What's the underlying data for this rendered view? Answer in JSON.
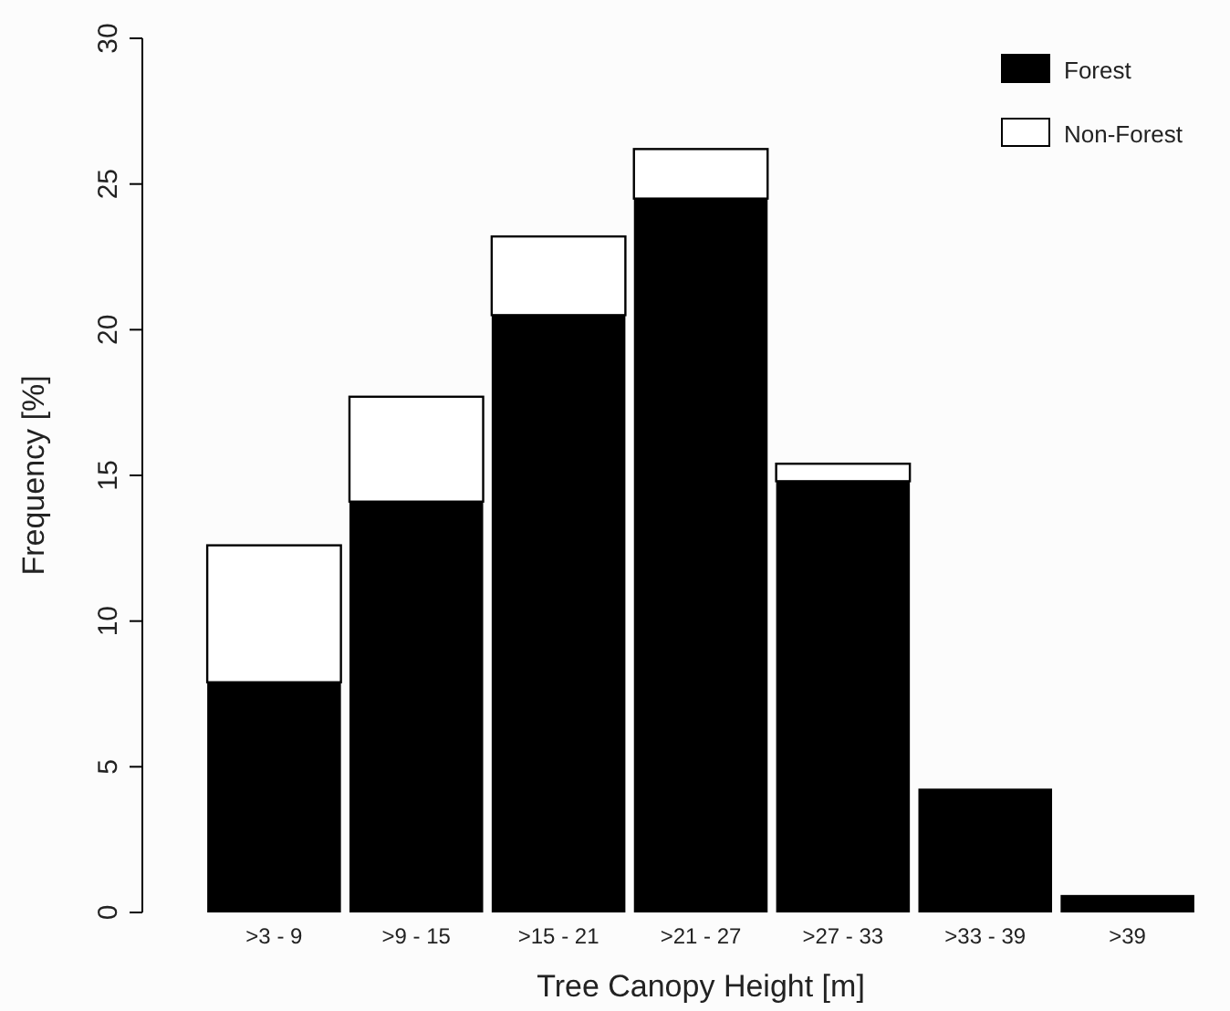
{
  "chart_data": {
    "type": "bar",
    "stacked": true,
    "xlabel": "Tree Canopy Height [m]",
    "ylabel": "Frequency [%]",
    "categories": [
      ">3 - 9",
      ">9 - 15",
      ">15 - 21",
      ">21 - 27",
      ">27 - 33",
      ">33 - 39",
      ">39"
    ],
    "series": [
      {
        "name": "Forest",
        "color": "#000000",
        "values": [
          7.9,
          14.1,
          20.5,
          24.5,
          14.8,
          4.25,
          0.6
        ]
      },
      {
        "name": "Non-Forest",
        "color": "#ffffff",
        "values": [
          4.7,
          3.6,
          2.7,
          1.7,
          0.6,
          0,
          0
        ]
      }
    ],
    "ylim": [
      0,
      30
    ],
    "yticks": [
      0,
      5,
      10,
      15,
      20,
      25,
      30
    ],
    "legend": "top right",
    "grid": false
  }
}
